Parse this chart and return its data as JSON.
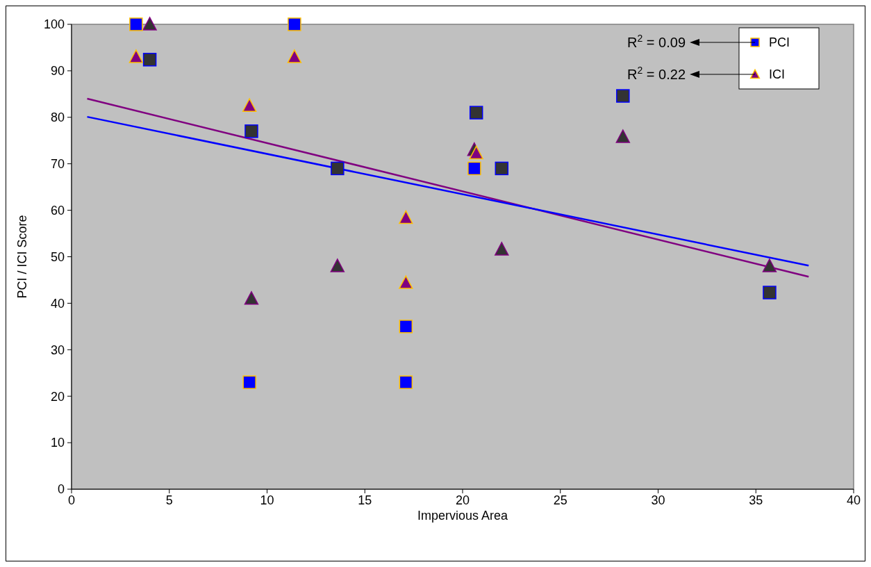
{
  "chart_data": {
    "type": "scatter",
    "xlabel": "Impervious Area",
    "ylabel": "PCI / ICI Score",
    "xlim": [
      0,
      40
    ],
    "xticks": [
      0,
      5,
      10,
      15,
      20,
      25,
      30,
      35,
      40
    ],
    "ylim": [
      0,
      100
    ],
    "yticks": [
      0,
      10,
      20,
      30,
      40,
      50,
      60,
      70,
      80,
      90,
      100
    ],
    "grid": false,
    "legend": "top right",
    "annotations": [
      "R$^{2}$ = 0.09",
      "R$^{2}$ = 0.22"
    ],
    "series": [
      {
        "name": "PCI",
        "marker": "square",
        "color": "#0000ff",
        "x": [
          3.3,
          11.4,
          9.1,
          17.1,
          17.1,
          20.6
        ],
        "values": [
          100,
          100,
          23,
          23,
          35,
          69
        ]
      },
      {
        "marker": "square",
        "color": "#333333",
        "x": [
          4.0,
          9.2,
          13.6,
          20.7,
          22.0,
          28.2,
          35.7
        ],
        "values": [
          92.4,
          77,
          69,
          81,
          69,
          84.6,
          42.3
        ]
      },
      {
        "name": "ICI",
        "marker": "triangle",
        "color": "#800080",
        "x": [
          3.3,
          11.4,
          9.1,
          17.1,
          17.1,
          20.7
        ],
        "values": [
          93,
          93,
          82.5,
          58.4,
          44.4,
          72.3
        ]
      },
      {
        "marker": "triangle",
        "color": "#333333",
        "x": [
          4.0,
          9.2,
          13.6,
          20.6,
          22.0,
          28.2,
          35.7
        ],
        "values": [
          100,
          41,
          48,
          73,
          51.6,
          75.8,
          48
        ]
      },
      {
        "type": "line",
        "color": "#0000ff",
        "x": [
          0.8,
          37.7
        ],
        "values": [
          80.1,
          48.1
        ]
      },
      {
        "type": "line",
        "color": "#800080",
        "x": [
          0.8,
          37.7
        ],
        "values": [
          84.0,
          45.7
        ]
      }
    ]
  }
}
